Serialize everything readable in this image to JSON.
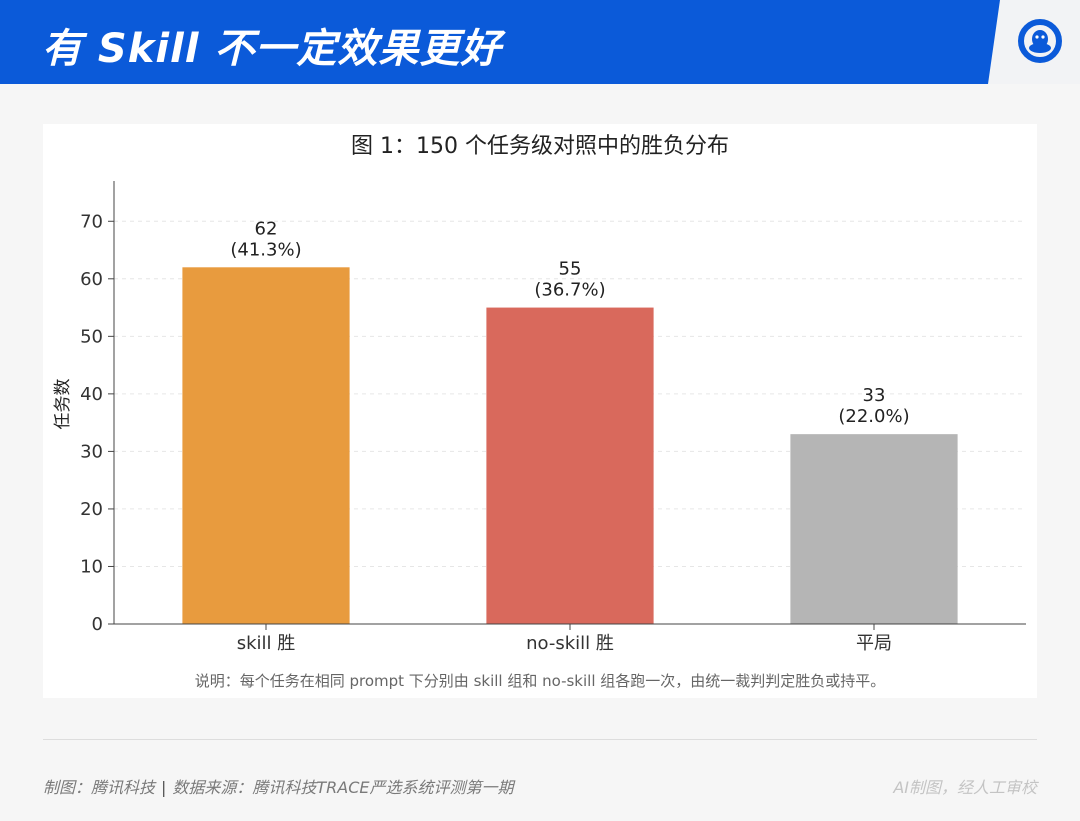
{
  "header": {
    "title": "有 Skill 不一定效果更好",
    "logo_icon": "tencent-qq-penguin-icon",
    "accent_color": "#0b5ad9"
  },
  "chart_data": {
    "type": "bar",
    "title": "图 1：150 个任务级对照中的胜负分布",
    "ylabel": "任务数",
    "xlabel": "",
    "categories": [
      "skill 胜",
      "no-skill 胜",
      "平局"
    ],
    "values": [
      62,
      55,
      33
    ],
    "value_labels": [
      "62",
      "55",
      "33"
    ],
    "percent_labels": [
      "(41.3%)",
      "(36.7%)",
      "(22.0%)"
    ],
    "colors": [
      "#e89b3e",
      "#d9695c",
      "#b5b5b5"
    ],
    "ylim": [
      0,
      77
    ],
    "yticks": [
      0,
      10,
      20,
      30,
      40,
      50,
      60,
      70
    ],
    "grid": true,
    "note": "说明：每个任务在相同 prompt 下分别由 skill 组和 no-skill 组各跑一次，由统一裁判判定胜负或持平。"
  },
  "footer": {
    "source_label": "制图：腾讯科技",
    "separator": "|",
    "data_source": "数据来源：腾讯科技TRACE严选系统评测第一期",
    "credit": "AI制图，经人工审校"
  }
}
